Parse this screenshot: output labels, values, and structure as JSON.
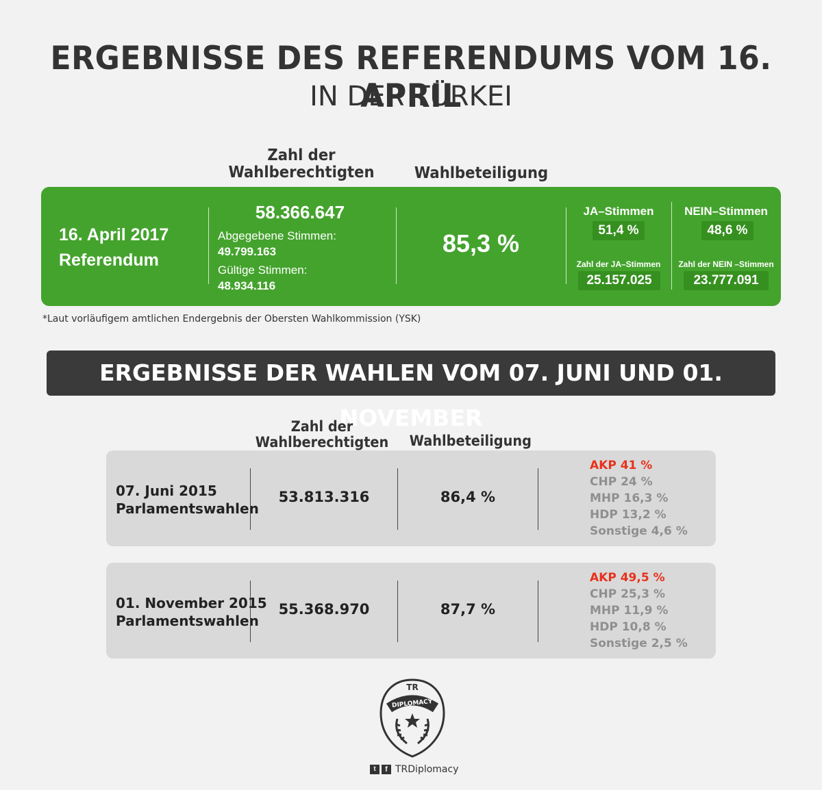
{
  "title": {
    "line1": "ERGEBNISSE DES REFERENDUMS VOM 16. APRIL",
    "line2": "IN DER TÜRKEI"
  },
  "referendum": {
    "col_voters": "Zahl der Wahlberechtigten",
    "col_turnout": "Wahlbeteiligung",
    "date": "16. April 2017",
    "type": "Referendum",
    "voters": "58.366.647",
    "cast_label": "Abgegebene Stimmen:",
    "cast_value": "49.799.163",
    "valid_label": "Gültige Stimmen:",
    "valid_value": "48.934.116",
    "turnout": "85,3 %",
    "yes_label": "JA–Stimmen",
    "yes_pct": "51,4 %",
    "no_label": "NEIN–Stimmen",
    "no_pct": "48,6 %",
    "yes_count_label": "Zahl der JA–Stimmen",
    "yes_count": "25.157.025",
    "no_count_label": "Zahl der NEIN –Stimmen",
    "no_count": "23.777.091",
    "note": "*Laut vorläufigem amtlichen Endergebnis der Obersten Wahlkommission (YSK)",
    "green": "#44a32d"
  },
  "elections": {
    "banner": "ERGEBNISSE DER WAHLEN VOM 07. JUNI UND 01. NOVEMBER",
    "col_voters": "Zahl der Wahlberechtigten",
    "col_turnout": "Wahlbeteiligung",
    "rows": [
      {
        "date": "07. Juni 2015",
        "type": "Parlamentswahlen",
        "voters": "53.813.316",
        "turnout": "86,4 %",
        "parties": [
          "AKP 41 %",
          "CHP 24 %",
          "MHP 16,3 %",
          "HDP 13,2 %",
          "Sonstige 4,6 %"
        ]
      },
      {
        "date": "01. November 2015",
        "type": "Parlamentswahlen",
        "voters": "55.368.970",
        "turnout": "87,7 %",
        "parties": [
          "AKP 49,5 %",
          "CHP 25,3 %",
          "MHP 11,9 %",
          "HDP 10,8 %",
          "Sonstige 2,5 %"
        ]
      }
    ],
    "highlight_color": "#e8321c"
  },
  "footer": {
    "logo_top": "TR",
    "logo_arc": "DIPLOMACY",
    "handle": "TRDiplomacy",
    "icons": [
      "twitter-icon",
      "facebook-icon"
    ]
  }
}
